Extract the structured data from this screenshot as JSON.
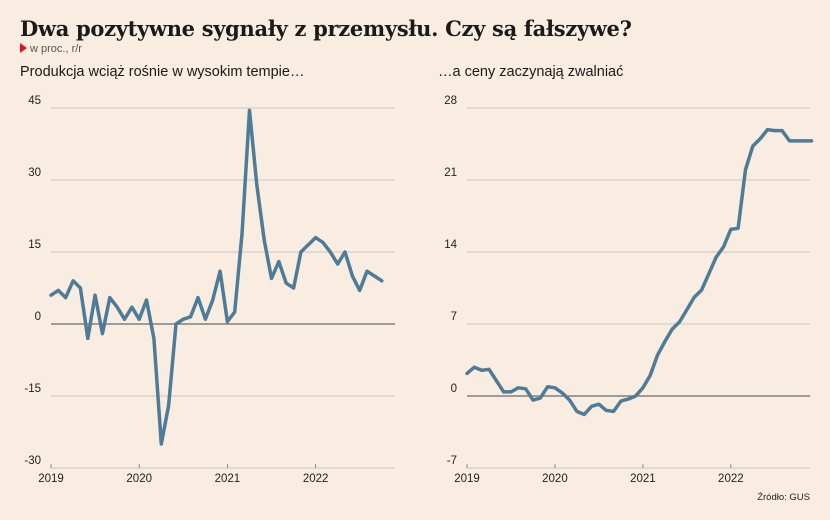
{
  "header": {
    "title": "Dwa pozytywne sygnały z przemysłu. Czy są fałszywe?",
    "subtitle": "w proc., r/r"
  },
  "source": "Źródło: GUS",
  "colors": {
    "background": "#f9ece0",
    "line": "#4e7b97",
    "marker": "#d8181f",
    "grid": "#bdbdbd",
    "zero": "#6a6a6a"
  },
  "chart_data": [
    {
      "type": "line",
      "title": "Produkcja wciąż rośnie w wysokim tempie…",
      "xlabel": "",
      "ylabel": "",
      "grid": true,
      "ylim": [
        -30,
        45
      ],
      "xlim": [
        2019.0,
        2022.9
      ],
      "yticks": [
        -30,
        -15,
        0,
        15,
        30,
        45
      ],
      "xticks": [
        {
          "v": 2019,
          "label": "2019"
        },
        {
          "v": 2020,
          "label": "2020"
        },
        {
          "v": 2021,
          "label": "2021"
        },
        {
          "v": 2022,
          "label": "2022"
        }
      ],
      "series": [
        {
          "x": [
            2019.0,
            2019.083,
            2019.167,
            2019.25,
            2019.333,
            2019.417,
            2019.5,
            2019.583,
            2019.667,
            2019.75,
            2019.833,
            2019.917,
            2020.0,
            2020.083,
            2020.167,
            2020.25,
            2020.333,
            2020.417,
            2020.5,
            2020.583,
            2020.667,
            2020.75,
            2020.833,
            2020.917,
            2021.0,
            2021.083,
            2021.167,
            2021.25,
            2021.333,
            2021.417,
            2021.5,
            2021.583,
            2021.667,
            2021.75,
            2021.833,
            2021.917,
            2022.0,
            2022.083,
            2022.167,
            2022.25,
            2022.333,
            2022.417,
            2022.5,
            2022.583,
            2022.667,
            2022.75
          ],
          "values": [
            6,
            7,
            5.5,
            9,
            7.5,
            -3,
            6,
            -2,
            5.5,
            3.5,
            1,
            3.5,
            1,
            5,
            -3,
            -25,
            -17,
            0,
            1,
            1.5,
            5.5,
            1,
            5,
            11,
            0.5,
            2.5,
            19,
            44.5,
            29,
            17.5,
            9.5,
            13,
            8.5,
            7.5,
            15,
            16.5,
            18,
            17,
            15,
            12.5,
            15,
            10,
            7,
            11,
            10,
            9
          ]
        }
      ]
    },
    {
      "type": "line",
      "title": "…a ceny zaczynają zwalniać",
      "xlabel": "",
      "ylabel": "",
      "grid": true,
      "ylim": [
        -7,
        28
      ],
      "xlim": [
        2019.0,
        2022.9
      ],
      "yticks": [
        -7,
        0,
        7,
        14,
        21,
        28
      ],
      "xticks": [
        {
          "v": 2019,
          "label": "2019"
        },
        {
          "v": 2020,
          "label": "2020"
        },
        {
          "v": 2021,
          "label": "2021"
        },
        {
          "v": 2022,
          "label": "2022"
        }
      ],
      "series": [
        {
          "x": [
            2019.0,
            2019.083,
            2019.167,
            2019.25,
            2019.333,
            2019.417,
            2019.5,
            2019.583,
            2019.667,
            2019.75,
            2019.833,
            2019.917,
            2020.0,
            2020.083,
            2020.167,
            2020.25,
            2020.333,
            2020.417,
            2020.5,
            2020.583,
            2020.667,
            2020.75,
            2020.833,
            2020.917,
            2021.0,
            2021.083,
            2021.167,
            2021.25,
            2021.333,
            2021.417,
            2021.5,
            2021.583,
            2021.667,
            2021.75,
            2021.833,
            2021.917,
            2022.0,
            2022.083,
            2022.167,
            2022.25,
            2022.333,
            2022.417,
            2022.5,
            2022.583,
            2022.667,
            2022.75,
            2022.833,
            2022.917
          ],
          "values": [
            2.2,
            2.8,
            2.5,
            2.6,
            1.5,
            0.4,
            0.4,
            0.8,
            0.7,
            -0.4,
            -0.2,
            0.9,
            0.8,
            0.3,
            -0.4,
            -1.5,
            -1.8,
            -1,
            -0.8,
            -1.4,
            -1.5,
            -0.5,
            -0.3,
            0,
            0.8,
            2,
            4,
            5.3,
            6.5,
            7.2,
            8.4,
            9.6,
            10.3,
            11.9,
            13.5,
            14.5,
            16.2,
            16.3,
            22,
            24.3,
            25,
            25.9,
            25.8,
            25.8,
            24.8,
            24.8,
            24.8,
            24.8
          ]
        }
      ]
    }
  ]
}
